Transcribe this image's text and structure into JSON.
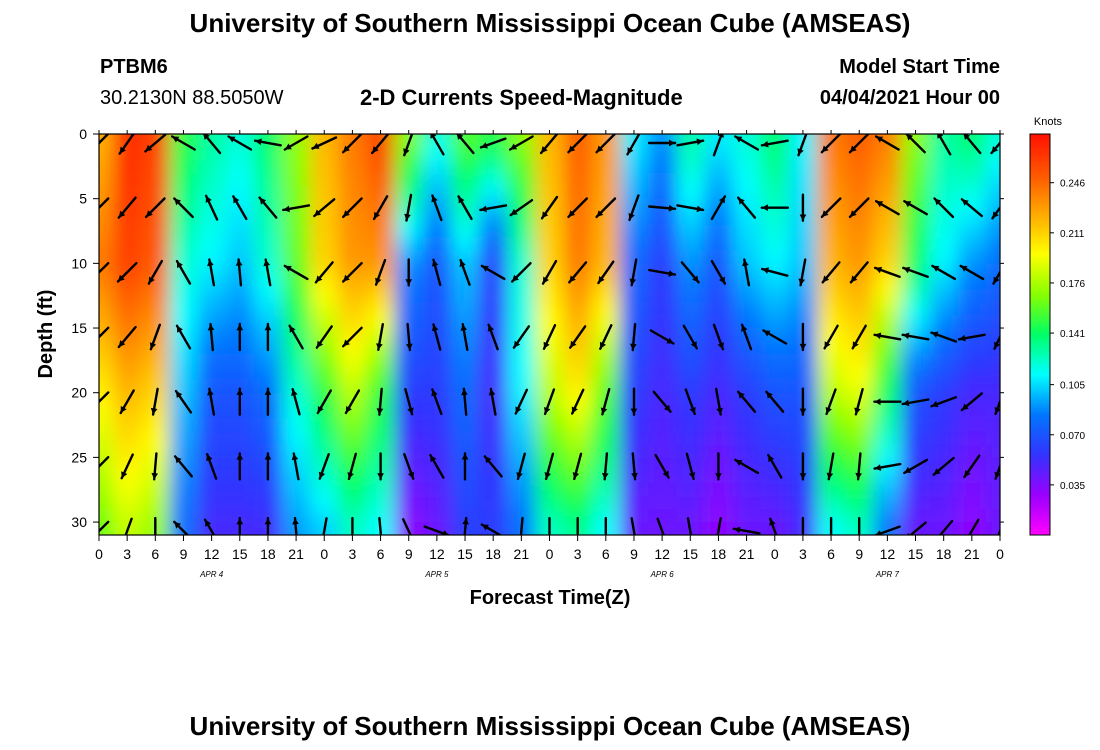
{
  "header": {
    "title": "University of Southern Mississippi Ocean Cube (AMSEAS)",
    "station_id": "PTBM6",
    "station_coords": "30.2130N  88.5050W",
    "subtitle": "2-D Currents Speed-Magnitude",
    "model_start_label": "Model Start Time",
    "model_start_value": "04/04/2021 Hour 00"
  },
  "footer": {
    "title": "University of Southern Mississippi Ocean Cube (AMSEAS)"
  },
  "colors": {
    "scale": [
      "#ff00ff",
      "#9900ff",
      "#3333ff",
      "#0077ff",
      "#00ffff",
      "#00ff66",
      "#88ff00",
      "#ffff00",
      "#ffaa00",
      "#ff5500",
      "#ff1100"
    ],
    "arrow": "#000000"
  },
  "chart_data": {
    "type": "heatmap",
    "title": "2-D Currents Speed-Magnitude",
    "xlabel": "Forecast Time(Z)",
    "ylabel": "Depth (ft)",
    "xlim": [
      0,
      96
    ],
    "ylim": [
      0,
      31
    ],
    "x_tick_values": [
      0,
      3,
      6,
      9,
      12,
      15,
      18,
      21,
      24,
      27,
      30,
      33,
      36,
      39,
      42,
      45,
      48,
      51,
      54,
      57,
      60,
      63,
      66,
      69,
      72,
      75,
      78,
      81,
      84,
      87,
      90,
      93,
      96
    ],
    "x_tick_labels": [
      "0",
      "3",
      "6",
      "9",
      "12",
      "15",
      "18",
      "21",
      "0",
      "3",
      "6",
      "9",
      "12",
      "15",
      "18",
      "21",
      "0",
      "3",
      "6",
      "9",
      "12",
      "15",
      "18",
      "21",
      "0",
      "3",
      "6",
      "9",
      "12",
      "15",
      "18",
      "21",
      "0"
    ],
    "y_tick_values": [
      0,
      5,
      10,
      15,
      20,
      25,
      30
    ],
    "y_tick_labels": [
      "0",
      "5",
      "10",
      "15",
      "20",
      "25",
      "30"
    ],
    "date_labels": [
      {
        "label": "APR 4",
        "x": 12
      },
      {
        "label": "APR 5",
        "x": 36
      },
      {
        "label": "APR 6",
        "x": 60
      },
      {
        "label": "APR 7",
        "x": 84
      }
    ],
    "colorbar": {
      "unit": "Knots",
      "range": [
        0.0,
        0.28
      ],
      "tick_values": [
        0.035,
        0.07,
        0.105,
        0.141,
        0.176,
        0.211,
        0.246
      ],
      "tick_labels": [
        "0.035",
        "0.070",
        "0.105",
        "0.141",
        "0.176",
        "0.211",
        "0.246"
      ]
    },
    "x": [
      0,
      3,
      6,
      9,
      12,
      15,
      18,
      21,
      24,
      27,
      30,
      33,
      36,
      39,
      42,
      45,
      48,
      51,
      54,
      57,
      60,
      63,
      66,
      69,
      72,
      75,
      78,
      81,
      84,
      87,
      90,
      93,
      96
    ],
    "depths": [
      0,
      5,
      10,
      15,
      20,
      25,
      30
    ],
    "speed_knots": [
      [
        0.22,
        0.24,
        0.2,
        0.16
      ],
      [
        0.27,
        0.26,
        0.22,
        0.18
      ],
      [
        0.26,
        0.25,
        0.21,
        0.17
      ],
      [
        0.15,
        0.12,
        0.1,
        0.08
      ],
      [
        0.13,
        0.11,
        0.07,
        0.05
      ],
      [
        0.12,
        0.1,
        0.07,
        0.05
      ],
      [
        0.14,
        0.12,
        0.08,
        0.05
      ],
      [
        0.17,
        0.16,
        0.12,
        0.09
      ],
      [
        0.22,
        0.21,
        0.15,
        0.1
      ],
      [
        0.24,
        0.23,
        0.18,
        0.12
      ],
      [
        0.26,
        0.23,
        0.15,
        0.11
      ],
      [
        0.17,
        0.09,
        0.06,
        0.03
      ],
      [
        0.12,
        0.07,
        0.06,
        0.04
      ],
      [
        0.16,
        0.1,
        0.08,
        0.06
      ],
      [
        0.15,
        0.06,
        0.05,
        0.06
      ],
      [
        0.17,
        0.12,
        0.11,
        0.08
      ],
      [
        0.22,
        0.21,
        0.18,
        0.12
      ],
      [
        0.25,
        0.24,
        0.2,
        0.13
      ],
      [
        0.23,
        0.22,
        0.16,
        0.11
      ],
      [
        0.11,
        0.08,
        0.06,
        0.04
      ],
      [
        0.09,
        0.06,
        0.05,
        0.04
      ],
      [
        0.13,
        0.09,
        0.06,
        0.04
      ],
      [
        0.11,
        0.07,
        0.05,
        0.03
      ],
      [
        0.12,
        0.1,
        0.06,
        0.04
      ],
      [
        0.14,
        0.11,
        0.07,
        0.04
      ],
      [
        0.11,
        0.1,
        0.07,
        0.05
      ],
      [
        0.24,
        0.22,
        0.18,
        0.11
      ],
      [
        0.25,
        0.23,
        0.19,
        0.12
      ],
      [
        0.24,
        0.21,
        0.14,
        0.08
      ],
      [
        0.17,
        0.14,
        0.07,
        0.04
      ],
      [
        0.13,
        0.11,
        0.06,
        0.04
      ],
      [
        0.14,
        0.09,
        0.05,
        0.03
      ],
      [
        0.12,
        0.08,
        0.05,
        0.04
      ]
    ],
    "arrow_directions_deg": [
      [
        225,
        225,
        225,
        225,
        225,
        225,
        225
      ],
      [
        215,
        220,
        225,
        220,
        210,
        205,
        200
      ],
      [
        230,
        225,
        210,
        200,
        190,
        185,
        180
      ],
      [
        300,
        315,
        330,
        330,
        325,
        320,
        315
      ],
      [
        320,
        335,
        350,
        355,
        350,
        340,
        330
      ],
      [
        300,
        330,
        355,
        0,
        0,
        0,
        0
      ],
      [
        280,
        320,
        350,
        0,
        0,
        0,
        0
      ],
      [
        240,
        260,
        300,
        330,
        345,
        350,
        355
      ],
      [
        245,
        230,
        220,
        215,
        210,
        200,
        190
      ],
      [
        225,
        225,
        225,
        225,
        210,
        195,
        180
      ],
      [
        220,
        210,
        200,
        190,
        185,
        180,
        175
      ],
      [
        200,
        190,
        180,
        175,
        165,
        160,
        155
      ],
      [
        330,
        340,
        345,
        345,
        340,
        330,
        110
      ],
      [
        320,
        330,
        340,
        350,
        355,
        0,
        5
      ],
      [
        250,
        260,
        300,
        340,
        350,
        320,
        300
      ],
      [
        240,
        235,
        225,
        215,
        205,
        195,
        185
      ],
      [
        220,
        215,
        210,
        205,
        200,
        195,
        180
      ],
      [
        225,
        225,
        220,
        215,
        205,
        195,
        180
      ],
      [
        225,
        225,
        215,
        205,
        195,
        185,
        180
      ],
      [
        210,
        200,
        190,
        185,
        180,
        175,
        170
      ],
      [
        90,
        95,
        100,
        120,
        140,
        150,
        160
      ],
      [
        80,
        100,
        140,
        150,
        160,
        165,
        170
      ],
      [
        20,
        30,
        150,
        160,
        170,
        180,
        190
      ],
      [
        300,
        320,
        350,
        340,
        320,
        300,
        280
      ],
      [
        260,
        270,
        285,
        300,
        320,
        330,
        340
      ],
      [
        200,
        180,
        190,
        180,
        180,
        180,
        180
      ],
      [
        225,
        225,
        220,
        210,
        200,
        190,
        180
      ],
      [
        225,
        225,
        220,
        210,
        195,
        185,
        180
      ],
      [
        300,
        300,
        290,
        280,
        270,
        260,
        250
      ],
      [
        315,
        300,
        290,
        280,
        260,
        240,
        230
      ],
      [
        330,
        315,
        300,
        290,
        250,
        230,
        220
      ],
      [
        320,
        310,
        300,
        260,
        230,
        215,
        210
      ],
      [
        220,
        215,
        210,
        205,
        200,
        200,
        200
      ]
    ]
  }
}
